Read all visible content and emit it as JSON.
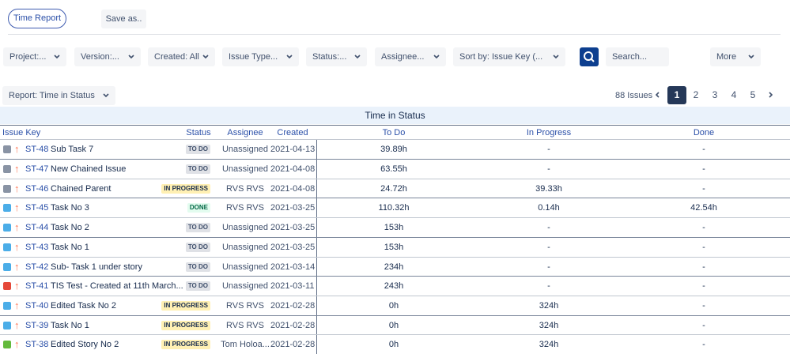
{
  "header": {
    "report_button": "Time Report",
    "save_button": "Save as.."
  },
  "filters": [
    "Project:...",
    "Version:...",
    "Created: All",
    "Issue Type...",
    "Status:...",
    "Assignee...",
    "Sort by: Issue Key (...",
    "Search...",
    "More"
  ],
  "report_select": "Report: Time in Status",
  "pagination": {
    "count": "88 Issues",
    "pages": [
      "1",
      "2",
      "3",
      "4",
      "5"
    ],
    "current": 0
  },
  "table": {
    "title": "Time in Status",
    "columns": [
      "Issue Key",
      "Status",
      "Assignee",
      "Created",
      "To Do",
      "In Progress",
      "Done"
    ],
    "rows": [
      {
        "icon_color": "#8993a4",
        "key": "ST-48",
        "summary": "Sub Task 7",
        "status": "TO DO",
        "assignee": "Unassigned",
        "created": "2021-04-13",
        "todo": "39.89h",
        "inprogress": "-",
        "done": "-"
      },
      {
        "icon_color": "#8993a4",
        "key": "ST-47",
        "summary": "New Chained Issue",
        "status": "TO DO",
        "assignee": "Unassigned",
        "created": "2021-04-08",
        "todo": "63.55h",
        "inprogress": "-",
        "done": "-"
      },
      {
        "icon_color": "#8993a4",
        "key": "ST-46",
        "summary": "Chained Parent",
        "status": "IN PROGRESS",
        "assignee": "RVS RVS",
        "created": "2021-04-08",
        "todo": "24.72h",
        "inprogress": "39.33h",
        "done": "-"
      },
      {
        "icon_color": "#4bade8",
        "key": "ST-45",
        "summary": "Task No 3",
        "status": "DONE",
        "assignee": "RVS RVS",
        "created": "2021-03-25",
        "todo": "110.32h",
        "inprogress": "0.14h",
        "done": "42.54h"
      },
      {
        "icon_color": "#4bade8",
        "key": "ST-44",
        "summary": "Task No 2",
        "status": "TO DO",
        "assignee": "Unassigned",
        "created": "2021-03-25",
        "todo": "153h",
        "inprogress": "-",
        "done": "-"
      },
      {
        "icon_color": "#4bade8",
        "key": "ST-43",
        "summary": "Task No 1",
        "status": "TO DO",
        "assignee": "Unassigned",
        "created": "2021-03-25",
        "todo": "153h",
        "inprogress": "-",
        "done": "-"
      },
      {
        "icon_color": "#4bade8",
        "key": "ST-42",
        "summary": "Sub- Task 1 under story",
        "status": "TO DO",
        "assignee": "Unassigned",
        "created": "2021-03-14",
        "todo": "234h",
        "inprogress": "-",
        "done": "-"
      },
      {
        "icon_color": "#e5493a",
        "key": "ST-41",
        "summary": "TIS Test - Created at 11th March...",
        "status": "TO DO",
        "assignee": "Unassigned",
        "created": "2021-03-11",
        "todo": "243h",
        "inprogress": "-",
        "done": "-"
      },
      {
        "icon_color": "#4bade8",
        "key": "ST-40",
        "summary": "Edited Task No 2",
        "status": "IN PROGRESS",
        "assignee": "RVS RVS",
        "created": "2021-02-28",
        "todo": "0h",
        "inprogress": "324h",
        "done": "-"
      },
      {
        "icon_color": "#4bade8",
        "key": "ST-39",
        "summary": "Task No 1",
        "status": "IN PROGRESS",
        "assignee": "RVS RVS",
        "created": "2021-02-28",
        "todo": "0h",
        "inprogress": "324h",
        "done": "-"
      },
      {
        "icon_color": "#63ba3c",
        "key": "ST-38",
        "summary": "Edited Story No 2",
        "status": "IN PROGRESS",
        "assignee": "Tom Holoa...",
        "created": "2021-02-28",
        "todo": "0h",
        "inprogress": "324h",
        "done": "-"
      }
    ]
  }
}
